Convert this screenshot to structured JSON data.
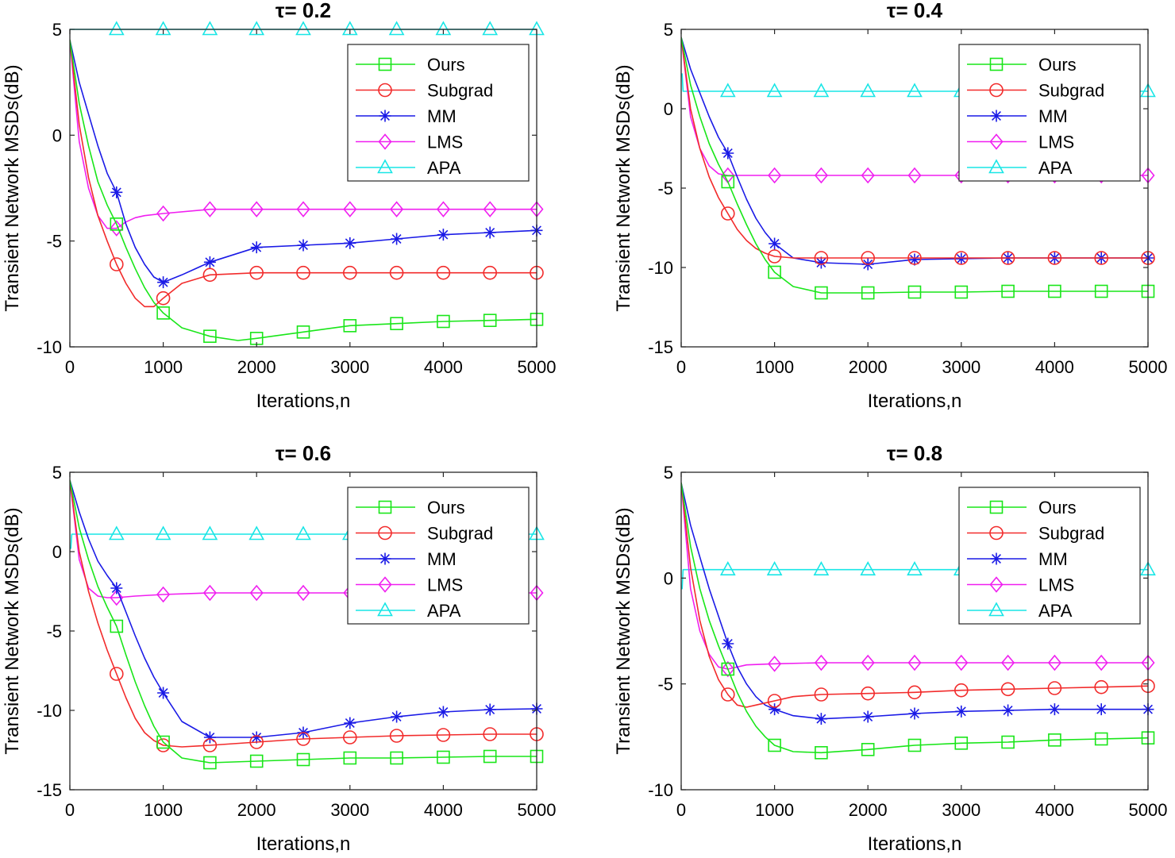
{
  "colors": {
    "Ours": "#19e619",
    "Subgrad": "#f22b2b",
    "MM": "#1a1ae6",
    "LMS": "#f01ff0",
    "APA": "#19e6e6"
  },
  "markers": {
    "Ours": "square",
    "Subgrad": "circle",
    "MM": "star",
    "LMS": "diamond",
    "APA": "triangle"
  },
  "chart_data": [
    {
      "type": "line",
      "title": "τ= 0.2",
      "xlabel": "Iterations,n",
      "ylabel": "Transient Network MSDs(dB)",
      "xlim": [
        0,
        5000
      ],
      "ylim": [
        -10,
        5
      ],
      "xticks": [
        0,
        1000,
        2000,
        3000,
        4000,
        5000
      ],
      "xtick_labels": [
        "0",
        "1000",
        "2000",
        "3000",
        "4000",
        "5000"
      ],
      "yticks": [
        -10,
        -5,
        0,
        5
      ],
      "ytick_labels": [
        "-10",
        "-5",
        "0",
        "5"
      ],
      "legend": [
        "Ours",
        "Subgrad",
        "MM",
        "LMS",
        "APA"
      ],
      "legend_position": "top-right",
      "marker_x": [
        500,
        1000,
        1500,
        2000,
        2500,
        3000,
        3500,
        4000,
        4500,
        5000
      ],
      "series": [
        {
          "name": "Ours",
          "x": [
            0,
            100,
            200,
            300,
            400,
            500,
            600,
            700,
            800,
            900,
            1000,
            1200,
            1500,
            1800,
            2000,
            2500,
            3000,
            3500,
            4000,
            4500,
            5000
          ],
          "values": [
            4.5,
            1.5,
            -0.5,
            -2.2,
            -3.3,
            -4.2,
            -5.3,
            -6.3,
            -7.2,
            -7.9,
            -8.4,
            -9.1,
            -9.5,
            -9.7,
            -9.6,
            -9.3,
            -9.0,
            -8.9,
            -8.8,
            -8.75,
            -8.7
          ]
        },
        {
          "name": "Subgrad",
          "x": [
            0,
            100,
            200,
            300,
            400,
            500,
            600,
            700,
            800,
            900,
            1000,
            1200,
            1500,
            2000,
            2500,
            3000,
            3500,
            4000,
            4500,
            5000
          ],
          "values": [
            4.5,
            0.5,
            -2.0,
            -3.8,
            -5.0,
            -6.1,
            -7.0,
            -7.7,
            -8.1,
            -8.1,
            -7.7,
            -7.0,
            -6.6,
            -6.5,
            -6.5,
            -6.5,
            -6.5,
            -6.5,
            -6.5,
            -6.5
          ]
        },
        {
          "name": "MM",
          "x": [
            0,
            100,
            200,
            300,
            400,
            500,
            600,
            700,
            800,
            900,
            1000,
            1200,
            1500,
            2000,
            2500,
            3000,
            3500,
            4000,
            4500,
            5000
          ],
          "values": [
            4.5,
            2.5,
            1.0,
            -0.5,
            -1.8,
            -2.7,
            -4.2,
            -5.3,
            -6.1,
            -6.7,
            -6.95,
            -6.6,
            -6.0,
            -5.3,
            -5.2,
            -5.1,
            -4.9,
            -4.7,
            -4.6,
            -4.5
          ]
        },
        {
          "name": "LMS",
          "x": [
            0,
            100,
            200,
            300,
            400,
            500,
            600,
            700,
            800,
            1000,
            1500,
            2000,
            2500,
            3000,
            3500,
            4000,
            4500,
            5000
          ],
          "values": [
            4.5,
            -0.3,
            -2.5,
            -3.8,
            -4.4,
            -4.4,
            -4.1,
            -3.9,
            -3.8,
            -3.7,
            -3.5,
            -3.5,
            -3.5,
            -3.5,
            -3.5,
            -3.5,
            -3.5,
            -3.5
          ]
        },
        {
          "name": "APA",
          "x": [
            0,
            20,
            500,
            1000,
            1500,
            2000,
            2500,
            3000,
            3500,
            4000,
            4500,
            5000
          ],
          "values": [
            5.0,
            5.0,
            5.0,
            5.0,
            5.0,
            5.0,
            5.0,
            5.0,
            5.0,
            5.0,
            5.0,
            5.0
          ]
        }
      ]
    },
    {
      "type": "line",
      "title": "τ= 0.4",
      "xlabel": "Iterations,n",
      "ylabel": "Transient Network MSDs(dB)",
      "xlim": [
        0,
        5000
      ],
      "ylim": [
        -15,
        5
      ],
      "xticks": [
        0,
        1000,
        2000,
        3000,
        4000,
        5000
      ],
      "xtick_labels": [
        "0",
        "1000",
        "2000",
        "3000",
        "4000",
        "5000"
      ],
      "yticks": [
        -15,
        -10,
        -5,
        0,
        5
      ],
      "ytick_labels": [
        "-15",
        "-10",
        "-5",
        "0",
        "5"
      ],
      "legend": [
        "Ours",
        "Subgrad",
        "MM",
        "LMS",
        "APA"
      ],
      "legend_position": "top-right",
      "marker_x": [
        500,
        1000,
        1500,
        2000,
        2500,
        3000,
        3500,
        4000,
        4500,
        5000
      ],
      "series": [
        {
          "name": "Ours",
          "x": [
            0,
            100,
            200,
            300,
            400,
            500,
            600,
            700,
            800,
            900,
            1000,
            1200,
            1500,
            2000,
            2500,
            3000,
            3500,
            4000,
            4500,
            5000
          ],
          "values": [
            4.5,
            1.5,
            -0.5,
            -2.2,
            -3.5,
            -4.6,
            -6.0,
            -7.3,
            -8.5,
            -9.5,
            -10.3,
            -11.2,
            -11.6,
            -11.6,
            -11.55,
            -11.55,
            -11.5,
            -11.5,
            -11.5,
            -11.5
          ]
        },
        {
          "name": "Subgrad",
          "x": [
            0,
            100,
            200,
            300,
            400,
            500,
            600,
            700,
            800,
            900,
            1000,
            1200,
            1500,
            2000,
            2500,
            3000,
            3500,
            4000,
            4500,
            5000
          ],
          "values": [
            4.5,
            0.0,
            -2.5,
            -4.3,
            -5.6,
            -6.6,
            -7.6,
            -8.3,
            -8.8,
            -9.1,
            -9.3,
            -9.4,
            -9.4,
            -9.4,
            -9.4,
            -9.4,
            -9.4,
            -9.4,
            -9.4,
            -9.4
          ]
        },
        {
          "name": "MM",
          "x": [
            0,
            100,
            200,
            300,
            400,
            500,
            600,
            700,
            800,
            900,
            1000,
            1200,
            1500,
            2000,
            2500,
            3000,
            3500,
            4000,
            4500,
            5000
          ],
          "values": [
            4.5,
            2.5,
            1.0,
            -0.5,
            -1.8,
            -2.8,
            -4.3,
            -5.7,
            -6.9,
            -7.8,
            -8.5,
            -9.4,
            -9.7,
            -9.8,
            -9.5,
            -9.45,
            -9.4,
            -9.4,
            -9.4,
            -9.4
          ]
        },
        {
          "name": "LMS",
          "x": [
            0,
            100,
            200,
            300,
            400,
            500,
            700,
            1000,
            1500,
            2000,
            2500,
            3000,
            3500,
            4000,
            4500,
            5000
          ],
          "values": [
            4.5,
            -0.5,
            -2.5,
            -3.6,
            -4.1,
            -4.2,
            -4.2,
            -4.2,
            -4.2,
            -4.2,
            -4.2,
            -4.2,
            -4.2,
            -4.2,
            -4.2,
            -4.2
          ]
        },
        {
          "name": "APA",
          "x": [
            0,
            10,
            20,
            500,
            1000,
            1500,
            2000,
            2500,
            3000,
            3500,
            4000,
            4500,
            5000
          ],
          "values": [
            2.2,
            2.2,
            1.1,
            1.1,
            1.1,
            1.1,
            1.1,
            1.1,
            1.1,
            1.1,
            1.1,
            1.1,
            1.1
          ]
        }
      ]
    },
    {
      "type": "line",
      "title": "τ= 0.6",
      "xlabel": "Iterations,n",
      "ylabel": "Transient Network MSDs(dB)",
      "xlim": [
        0,
        5000
      ],
      "ylim": [
        -15,
        5
      ],
      "xticks": [
        0,
        1000,
        2000,
        3000,
        4000,
        5000
      ],
      "xtick_labels": [
        "0",
        "1000",
        "2000",
        "3000",
        "4000",
        "5000"
      ],
      "yticks": [
        -15,
        -10,
        -5,
        0,
        5
      ],
      "ytick_labels": [
        "-15",
        "-10",
        "-5",
        "0",
        "5"
      ],
      "legend": [
        "Ours",
        "Subgrad",
        "MM",
        "LMS",
        "APA"
      ],
      "legend_position": "top-right",
      "marker_x": [
        500,
        1000,
        1500,
        2000,
        2500,
        3000,
        3500,
        4000,
        4500,
        5000
      ],
      "series": [
        {
          "name": "Ours",
          "x": [
            0,
            100,
            200,
            300,
            400,
            500,
            600,
            700,
            800,
            900,
            1000,
            1200,
            1500,
            2000,
            2500,
            3000,
            3500,
            4000,
            4500,
            5000
          ],
          "values": [
            4.5,
            1.5,
            -0.5,
            -2.2,
            -3.5,
            -4.7,
            -6.5,
            -8.2,
            -9.7,
            -11.0,
            -12.0,
            -13.0,
            -13.3,
            -13.2,
            -13.1,
            -13.0,
            -13.0,
            -12.95,
            -12.9,
            -12.9
          ]
        },
        {
          "name": "Subgrad",
          "x": [
            0,
            100,
            200,
            300,
            400,
            500,
            600,
            700,
            800,
            900,
            1000,
            1200,
            1500,
            2000,
            2500,
            3000,
            3500,
            4000,
            4500,
            5000
          ],
          "values": [
            4.5,
            0.0,
            -2.5,
            -4.5,
            -6.2,
            -7.7,
            -9.2,
            -10.5,
            -11.4,
            -11.9,
            -12.2,
            -12.3,
            -12.2,
            -12.0,
            -11.8,
            -11.7,
            -11.6,
            -11.55,
            -11.5,
            -11.5
          ]
        },
        {
          "name": "MM",
          "x": [
            0,
            100,
            200,
            300,
            400,
            500,
            600,
            700,
            800,
            900,
            1000,
            1200,
            1500,
            2000,
            2500,
            3000,
            3500,
            4000,
            4500,
            5000
          ],
          "values": [
            4.5,
            2.5,
            0.8,
            -0.6,
            -1.5,
            -2.3,
            -3.8,
            -5.3,
            -6.7,
            -7.9,
            -8.9,
            -10.7,
            -11.7,
            -11.7,
            -11.4,
            -10.8,
            -10.4,
            -10.1,
            -9.95,
            -9.9
          ]
        },
        {
          "name": "LMS",
          "x": [
            0,
            100,
            200,
            300,
            400,
            500,
            700,
            1000,
            1500,
            2000,
            2500,
            3000,
            3500,
            4000,
            4500,
            5000
          ],
          "values": [
            4.5,
            -0.5,
            -2.3,
            -2.8,
            -2.9,
            -2.9,
            -2.8,
            -2.7,
            -2.6,
            -2.6,
            -2.6,
            -2.6,
            -2.6,
            -2.6,
            -2.6,
            -2.6
          ]
        },
        {
          "name": "APA",
          "x": [
            0,
            10,
            20,
            500,
            1000,
            1500,
            2000,
            2500,
            3000,
            3500,
            4000,
            4500,
            5000
          ],
          "values": [
            0.2,
            0.2,
            1.1,
            1.1,
            1.1,
            1.1,
            1.1,
            1.1,
            1.1,
            1.1,
            1.1,
            1.1,
            1.1
          ]
        }
      ]
    },
    {
      "type": "line",
      "title": "τ= 0.8",
      "xlabel": "Iterations,n",
      "ylabel": "Transient Network MSDs(dB)",
      "xlim": [
        0,
        5000
      ],
      "ylim": [
        -10,
        5
      ],
      "xticks": [
        0,
        1000,
        2000,
        3000,
        4000,
        5000
      ],
      "xtick_labels": [
        "0",
        "1000",
        "2000",
        "3000",
        "4000",
        "5000"
      ],
      "yticks": [
        -10,
        -5,
        0,
        5
      ],
      "ytick_labels": [
        "-10",
        "-5",
        "0",
        "5"
      ],
      "legend": [
        "Ours",
        "Subgrad",
        "MM",
        "LMS",
        "APA"
      ],
      "legend_position": "top-right",
      "marker_x": [
        500,
        1000,
        1500,
        2000,
        2500,
        3000,
        3500,
        4000,
        4500,
        5000
      ],
      "series": [
        {
          "name": "Ours",
          "x": [
            0,
            100,
            200,
            300,
            400,
            500,
            600,
            700,
            800,
            900,
            1000,
            1200,
            1500,
            2000,
            2500,
            3000,
            3500,
            4000,
            4500,
            5000
          ],
          "values": [
            4.5,
            1.5,
            -0.5,
            -2.0,
            -3.2,
            -4.3,
            -5.4,
            -6.3,
            -7.0,
            -7.5,
            -7.9,
            -8.2,
            -8.25,
            -8.1,
            -7.9,
            -7.8,
            -7.75,
            -7.65,
            -7.6,
            -7.55
          ]
        },
        {
          "name": "Subgrad",
          "x": [
            0,
            100,
            200,
            300,
            400,
            500,
            600,
            700,
            800,
            900,
            1000,
            1200,
            1500,
            2000,
            2500,
            3000,
            3500,
            4000,
            4500,
            5000
          ],
          "values": [
            4.5,
            0.5,
            -2.0,
            -3.7,
            -4.8,
            -5.5,
            -6.0,
            -6.1,
            -6.0,
            -5.9,
            -5.8,
            -5.6,
            -5.5,
            -5.45,
            -5.4,
            -5.3,
            -5.25,
            -5.2,
            -5.15,
            -5.1
          ]
        },
        {
          "name": "MM",
          "x": [
            0,
            100,
            200,
            300,
            400,
            500,
            600,
            700,
            800,
            900,
            1000,
            1200,
            1500,
            2000,
            2500,
            3000,
            3500,
            4000,
            4500,
            5000
          ],
          "values": [
            4.5,
            2.5,
            1.0,
            -0.5,
            -1.8,
            -3.1,
            -4.2,
            -5.0,
            -5.6,
            -6.0,
            -6.2,
            -6.5,
            -6.65,
            -6.55,
            -6.4,
            -6.3,
            -6.25,
            -6.2,
            -6.2,
            -6.2
          ]
        },
        {
          "name": "LMS",
          "x": [
            0,
            100,
            200,
            300,
            400,
            500,
            700,
            1000,
            1500,
            2000,
            2500,
            3000,
            3500,
            4000,
            4500,
            5000
          ],
          "values": [
            4.5,
            -0.5,
            -2.5,
            -3.6,
            -4.2,
            -4.3,
            -4.1,
            -4.05,
            -4.0,
            -4.0,
            -4.0,
            -4.0,
            -4.0,
            -4.0,
            -4.0,
            -4.0
          ]
        },
        {
          "name": "APA",
          "x": [
            0,
            10,
            20,
            500,
            1000,
            1500,
            2000,
            2500,
            3000,
            3500,
            4000,
            4500,
            5000
          ],
          "values": [
            -0.5,
            -0.5,
            0.4,
            0.4,
            0.4,
            0.4,
            0.4,
            0.4,
            0.4,
            0.4,
            0.4,
            0.4,
            0.4
          ]
        }
      ]
    }
  ]
}
